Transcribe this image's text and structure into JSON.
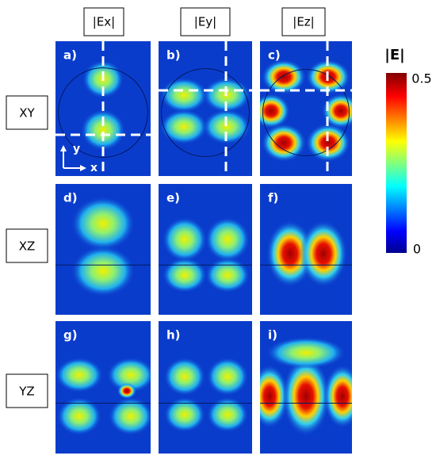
{
  "columns": [
    "|Ex|",
    "|Ey|",
    "|Ez|"
  ],
  "rows": [
    "XY",
    "XZ",
    "YZ"
  ],
  "panels": [
    "a)",
    "b)",
    "c)",
    "d)",
    "e)",
    "f)",
    "g)",
    "h)",
    "i)"
  ],
  "axes": {
    "y": "y",
    "x": "x"
  },
  "colorbar": {
    "label": "|E|",
    "ticks": [
      "0.5",
      "0"
    ]
  }
}
